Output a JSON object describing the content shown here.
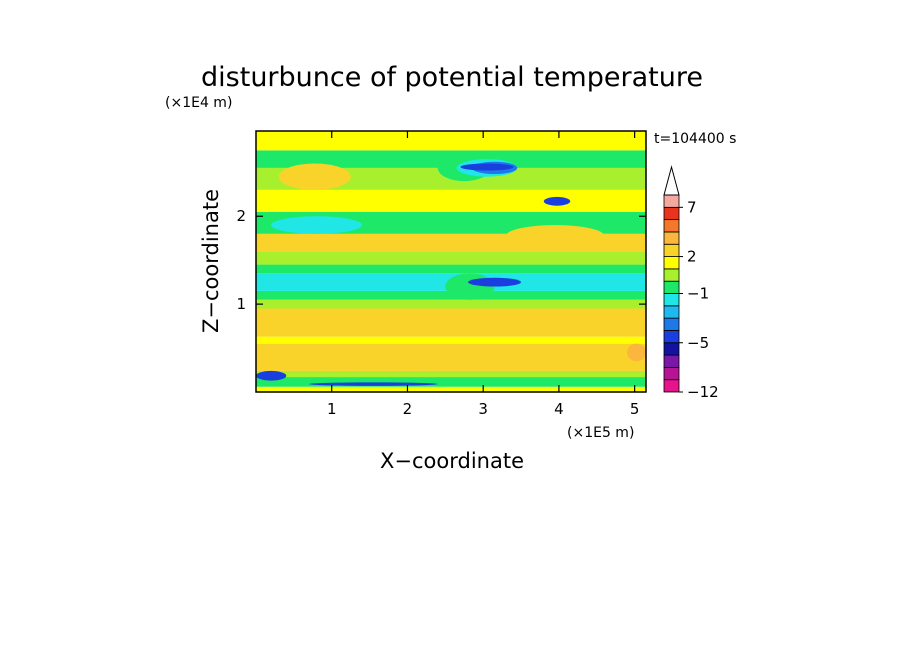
{
  "chart_data": {
    "type": "heatmap",
    "title": "disturbunce of potential temperature",
    "xlabel": "X−coordinate",
    "ylabel": "Z−coordinate",
    "x_unit": "(×1E5 m)",
    "y_unit": "(×1E4 m)",
    "time_label": "t=104400 s",
    "xlim": [
      0,
      5.15
    ],
    "ylim": [
      0,
      2.97
    ],
    "x_ticks": [
      {
        "value": 1,
        "label": "1"
      },
      {
        "value": 2,
        "label": "2"
      },
      {
        "value": 3,
        "label": "3"
      },
      {
        "value": 4,
        "label": "4"
      },
      {
        "value": 5,
        "label": "5"
      }
    ],
    "y_ticks": [
      {
        "value": 1,
        "label": "1"
      },
      {
        "value": 2,
        "label": "2"
      }
    ],
    "colorbar": {
      "levels": [
        -12,
        -10,
        -8,
        -6,
        -5,
        -4,
        -3,
        -2,
        -1,
        0,
        1,
        2,
        3,
        4,
        5,
        7,
        9
      ],
      "colors": [
        "#e8128a",
        "#b41595",
        "#7a16a8",
        "#1313a0",
        "#1b3ede",
        "#1c79e6",
        "#1fb9f0",
        "#20e6e6",
        "#1de868",
        "#a8f02e",
        "#ffff00",
        "#f9d22a",
        "#fbb63e",
        "#f5782a",
        "#e8341c",
        "#f4a8a0"
      ],
      "extend": "max",
      "labels": [
        {
          "value": -12,
          "label": "−12"
        },
        {
          "value": -5,
          "label": "−5"
        },
        {
          "value": -1,
          "label": "−1"
        },
        {
          "value": 2,
          "label": "2"
        },
        {
          "value": 7,
          "label": "7"
        }
      ]
    },
    "field_bands": [
      {
        "z": [
          0.0,
          0.06
        ],
        "value": 1.5
      },
      {
        "z": [
          0.06,
          0.17
        ],
        "value": -0.5
      },
      {
        "z": [
          0.17,
          0.24
        ],
        "value": 0.5
      },
      {
        "z": [
          0.24,
          0.55
        ],
        "value": 2.5
      },
      {
        "z": [
          0.55,
          0.63
        ],
        "value": 1.5
      },
      {
        "z": [
          0.63,
          0.95
        ],
        "value": 2.5
      },
      {
        "z": [
          0.95,
          1.05
        ],
        "value": 0.5
      },
      {
        "z": [
          1.05,
          1.15
        ],
        "value": -0.5
      },
      {
        "z": [
          1.15,
          1.35
        ],
        "value": -1.5
      },
      {
        "z": [
          1.35,
          1.45
        ],
        "value": -0.5
      },
      {
        "z": [
          1.45,
          1.6
        ],
        "value": 0.5
      },
      {
        "z": [
          1.6,
          1.8
        ],
        "value": 2.5
      },
      {
        "z": [
          1.8,
          2.05
        ],
        "value": -0.5
      },
      {
        "z": [
          2.05,
          2.3
        ],
        "value": 1.5
      },
      {
        "z": [
          2.3,
          2.55
        ],
        "value": 0.5
      },
      {
        "z": [
          2.55,
          2.75
        ],
        "value": -0.5
      },
      {
        "z": [
          2.75,
          2.97
        ],
        "value": 1.5
      }
    ],
    "features": [
      {
        "x": [
          2.5,
          3.15
        ],
        "z": [
          1.05,
          1.35
        ],
        "value": -0.5
      },
      {
        "x": [
          2.4,
          3.1
        ],
        "z": [
          2.4,
          2.7
        ],
        "value": -0.5
      },
      {
        "x": [
          2.65,
          3.45
        ],
        "z": [
          2.45,
          2.65
        ],
        "value": -1.5
      },
      {
        "x": [
          2.85,
          3.45
        ],
        "z": [
          2.48,
          2.62
        ],
        "value": -3.5
      },
      {
        "x": [
          2.7,
          3.4
        ],
        "z": [
          2.52,
          2.6
        ],
        "value": -4.5
      },
      {
        "x": [
          0.3,
          1.25
        ],
        "z": [
          2.3,
          2.6
        ],
        "value": 2.5
      },
      {
        "x": [
          0.2,
          1.4
        ],
        "z": [
          1.8,
          2.0
        ],
        "value": -1.5
      },
      {
        "x": [
          2.8,
          3.5
        ],
        "z": [
          1.2,
          1.3
        ],
        "value": -4.5
      },
      {
        "x": [
          0.0,
          0.4
        ],
        "z": [
          0.13,
          0.24
        ],
        "value": -4.5
      },
      {
        "x": [
          0.7,
          2.4
        ],
        "z": [
          0.07,
          0.11
        ],
        "value": -4.5
      },
      {
        "x": [
          3.8,
          4.15
        ],
        "z": [
          2.12,
          2.22
        ],
        "value": -4.5
      },
      {
        "x": [
          3.3,
          4.6
        ],
        "z": [
          1.65,
          1.9
        ],
        "value": 2.5
      },
      {
        "x": [
          4.9,
          5.15
        ],
        "z": [
          0.35,
          0.55
        ],
        "value": 3.5
      }
    ]
  }
}
